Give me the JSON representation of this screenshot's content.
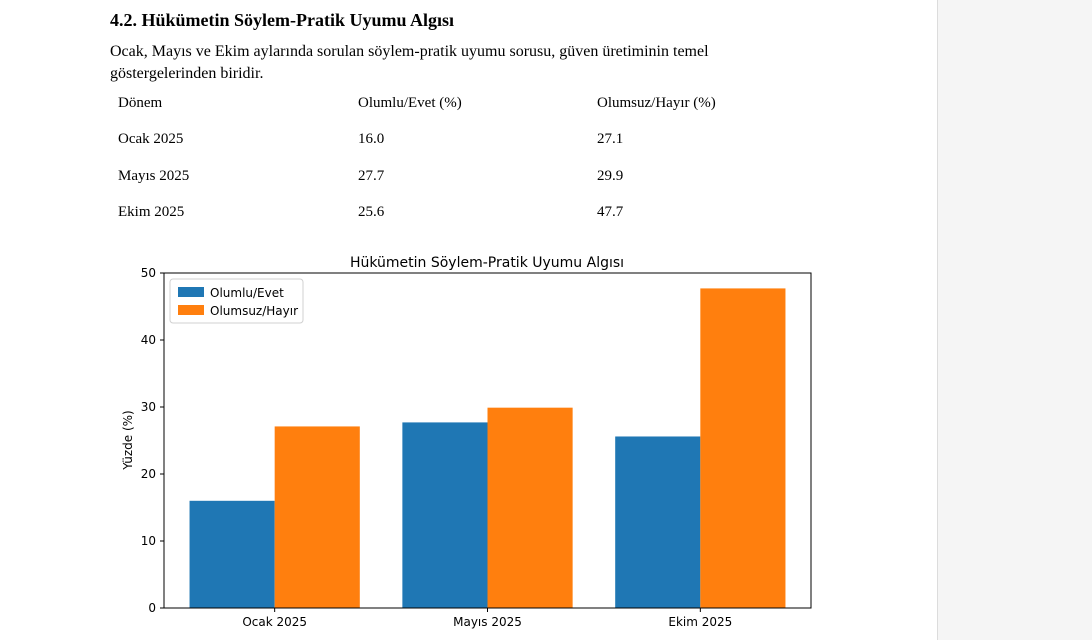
{
  "document": {
    "heading": "4.2. Hükümetin Söylem-Pratik Uyumu Algısı",
    "paragraph_lines": [
      "Ocak, Mayıs ve Ekim aylarında sorulan söylem-pratik uyumu sorusu, güven üretiminin temel",
      "göstergelerinden biridir."
    ],
    "table": {
      "headers": [
        "Dönem",
        "Olumlu/Evet (%)",
        "Olumsuz/Hayır (%)"
      ],
      "rows": [
        [
          "Ocak 2025",
          "16.0",
          "27.1"
        ],
        [
          "Mayıs 2025",
          "27.7",
          "29.9"
        ],
        [
          "Ekim 2025",
          "25.6",
          "47.7"
        ]
      ]
    }
  },
  "chart_data": {
    "type": "bar",
    "title": "Hükümetin Söylem-Pratik Uyumu Algısı",
    "xlabel": "",
    "ylabel": "Yüzde (%)",
    "categories": [
      "Ocak 2025",
      "Mayıs 2025",
      "Ekim 2025"
    ],
    "series": [
      {
        "name": "Olumlu/Evet",
        "values": [
          16.0,
          27.7,
          25.6
        ],
        "color": "#1f77b4"
      },
      {
        "name": "Olumsuz/Hayır",
        "values": [
          27.1,
          29.9,
          47.7
        ],
        "color": "#ff7f0e"
      }
    ],
    "ylim": [
      0,
      50
    ],
    "yticks": [
      0,
      10,
      20,
      30,
      40,
      50
    ],
    "grid": false,
    "legend": "top-left"
  }
}
